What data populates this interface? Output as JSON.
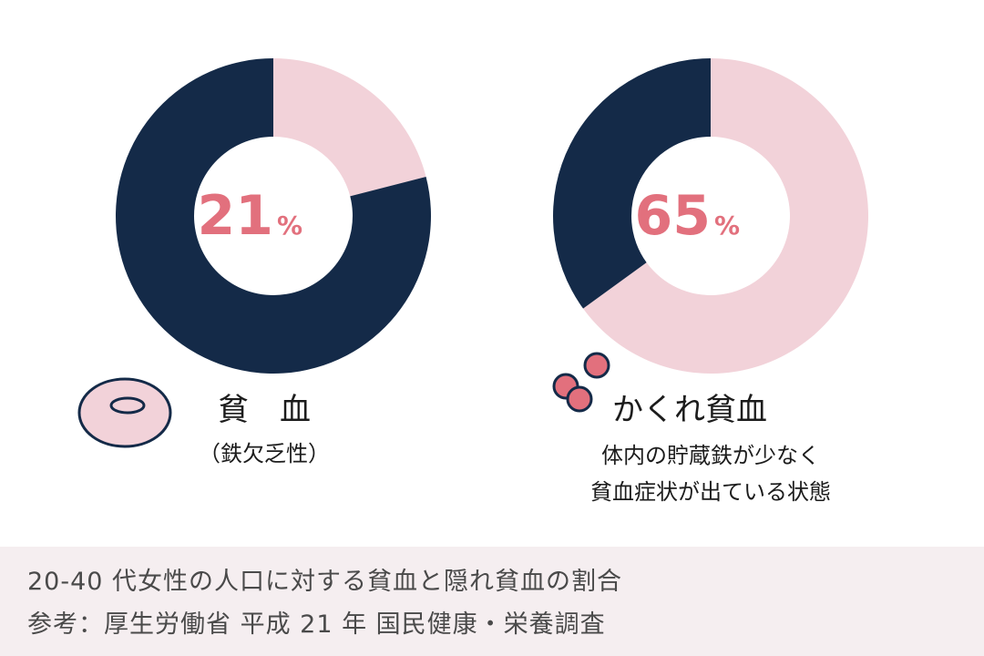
{
  "colors": {
    "navy": "#142a48",
    "pink_light": "#f2d2d9",
    "accent": "#e2707d",
    "footer_bg": "#f5eef0",
    "footer_text": "#4a4a4a"
  },
  "chart_data": [
    {
      "type": "pie",
      "donut": true,
      "highlight_value": 21,
      "other_value": 79,
      "value_label": "21",
      "unit": "%",
      "highlight_color": "#f2d2d9",
      "other_color": "#142a48",
      "label": "貧　血",
      "sublabel": "（鉄欠乏性）",
      "icon": "red-blood-cell-icon"
    },
    {
      "type": "pie",
      "donut": true,
      "highlight_value": 65,
      "other_value": 35,
      "value_label": "65",
      "unit": "%",
      "highlight_color": "#f2d2d9",
      "other_color": "#142a48",
      "label": "かくれ貧血",
      "sublabel_lines": [
        "体内の貯蔵鉄が少なく",
        "貧血症状が出ている状態"
      ],
      "icon": "small-blood-cells-icon"
    }
  ],
  "footer": {
    "line1": "20-40 代女性の人口に対する貧血と隠れ貧血の割合",
    "line2": "参考：厚生労働省 平成 21 年 国民健康・栄養調査"
  }
}
